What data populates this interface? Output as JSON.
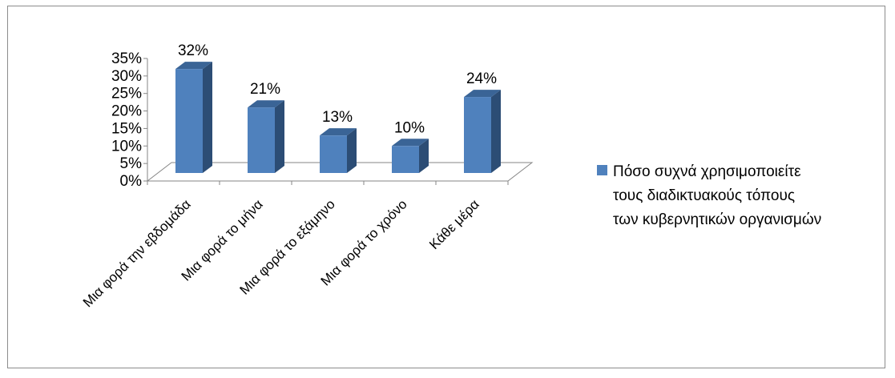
{
  "chart_data": {
    "type": "bar",
    "style": "3d-column",
    "categories": [
      "Μια φορά την εβδομάδα",
      "Μια φορά το μήνα",
      "Μια φορά το εξάμηνο",
      "Μια φορά το χρόνο",
      "Κάθε μέρα"
    ],
    "series": [
      {
        "name": "Πόσο συχνά χρησιμοποιείτε τους διαδικτυακούς τόπους των κυβερνητικών οργανισμών",
        "values": [
          32,
          21,
          13,
          10,
          24
        ]
      }
    ],
    "data_labels": [
      "32%",
      "21%",
      "13%",
      "10%",
      "24%"
    ],
    "y_ticks": [
      "0%",
      "5%",
      "10%",
      "15%",
      "20%",
      "25%",
      "30%",
      "35%"
    ],
    "ylim": [
      0,
      35
    ],
    "grid": false,
    "legend": {
      "placement": "right",
      "lines": [
        "Πόσο συχνά χρησιμοποιείτε",
        "τους διαδικτυακούς τόπους",
        "των κυβερνητικών οργανισμών"
      ]
    },
    "colors": {
      "bar_front": "#4f81bd",
      "bar_side": "#2c4d75",
      "bar_top": "#3a6496",
      "axis": "#868686"
    }
  }
}
